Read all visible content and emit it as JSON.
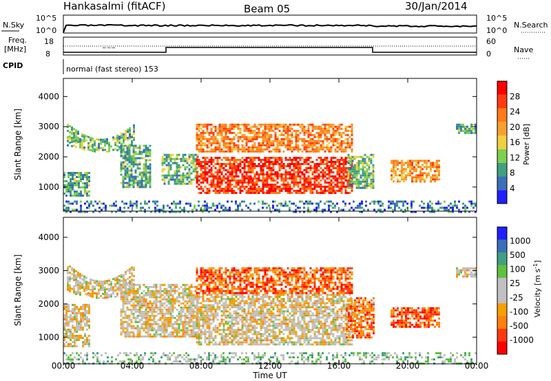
{
  "header": {
    "station": "Hankasalmi (fitACF)",
    "beam": "Beam 05",
    "date": "30/Jan/2014"
  },
  "noise_panel": {
    "left_label": "N.Sky",
    "left_top": "10^5",
    "left_bottom": "10^0",
    "right_label": "N.Search",
    "right_top": "10^5",
    "right_bottom": "10^0"
  },
  "freq_panel": {
    "label_line1": "Freq.",
    "label_line2": "[MHz]",
    "tick_top": "18",
    "tick_bottom": "8",
    "right_label": "Nave",
    "right_top": "60",
    "right_bottom": "0"
  },
  "cpid": {
    "label": "CPID",
    "text": "normal (fast stereo) 153"
  },
  "colors": {
    "power": [
      "#2020ff",
      "#3b6fb8",
      "#40a080",
      "#7fcf4f",
      "#f0d040",
      "#f7a030",
      "#ff7a18",
      "#ff3a10",
      "#ff0000"
    ],
    "velocity": [
      "#ff0000",
      "#ff3a10",
      "#ff8010",
      "#f5a000",
      "#c0c0c0",
      "#c0c0c0",
      "#60c040",
      "#40a080",
      "#3b6fb8",
      "#2020ff"
    ]
  },
  "chart_data": [
    {
      "type": "heatmap",
      "name": "power",
      "ylabel": "Slant Range [km]",
      "xlabel": "Time UT",
      "xticks": [
        "00:00",
        "04:00",
        "08:00",
        "12:00",
        "16:00",
        "20:00",
        "00:00"
      ],
      "yticks": [
        "1000",
        "2000",
        "3000",
        "4000"
      ],
      "ylim": [
        200,
        4600
      ],
      "xlim": [
        0,
        24
      ],
      "colorbar_label": "Power [dB]",
      "colorbar_ticks": [
        "4",
        "8",
        "12",
        "16",
        "20",
        "24",
        "28"
      ],
      "regions": [
        {
          "t0": 0.2,
          "t1": 4.1,
          "r0": 2200,
          "r1": 3100,
          "level": 0.35,
          "shape": "arc"
        },
        {
          "t0": 0.0,
          "t1": 1.5,
          "r0": 700,
          "r1": 1500,
          "level": 0.3
        },
        {
          "t0": 3.3,
          "t1": 5.0,
          "r0": 1000,
          "r1": 2400,
          "level": 0.3
        },
        {
          "t0": 5.7,
          "t1": 7.8,
          "r0": 1100,
          "r1": 2100,
          "level": 0.35
        },
        {
          "t0": 7.7,
          "t1": 16.8,
          "r0": 800,
          "r1": 2000,
          "level": 0.85
        },
        {
          "t0": 7.7,
          "t1": 16.8,
          "r0": 2200,
          "r1": 3100,
          "level": 0.7
        },
        {
          "t0": 16.5,
          "t1": 18.0,
          "r0": 1000,
          "r1": 2100,
          "level": 0.35
        },
        {
          "t0": 19.0,
          "t1": 21.8,
          "r0": 1200,
          "r1": 1900,
          "level": 0.65
        },
        {
          "t0": 22.8,
          "t1": 24.0,
          "r0": 2800,
          "r1": 3100,
          "level": 0.3
        },
        {
          "t0": 0.0,
          "t1": 24.0,
          "r0": 200,
          "r1": 550,
          "level": 0.2,
          "shape": "ground"
        }
      ]
    },
    {
      "type": "heatmap",
      "name": "velocity",
      "ylabel": "Slant Range [km]",
      "xlabel": "Time UT",
      "xticks": [
        "00:00",
        "04:00",
        "08:00",
        "12:00",
        "16:00",
        "20:00",
        "00:00"
      ],
      "yticks": [
        "1000",
        "2000",
        "3000",
        "4000"
      ],
      "ylim": [
        200,
        4600
      ],
      "xlim": [
        0,
        24
      ],
      "colorbar_label": "Velocity [m s^-1]",
      "colorbar_ticks": [
        "-1000",
        "-500",
        "-100",
        "-25",
        "25",
        "100",
        "500",
        "1000"
      ],
      "regions": [
        {
          "t0": 0.2,
          "t1": 4.1,
          "r0": 2200,
          "r1": 3200,
          "level": 0.45,
          "shape": "arc"
        },
        {
          "t0": 0.0,
          "t1": 1.5,
          "r0": 700,
          "r1": 2000,
          "level": 0.45
        },
        {
          "t0": 3.3,
          "t1": 7.8,
          "r0": 1000,
          "r1": 2600,
          "level": 0.45
        },
        {
          "t0": 7.7,
          "t1": 16.8,
          "r0": 800,
          "r1": 2300,
          "level": 0.45
        },
        {
          "t0": 7.7,
          "t1": 16.8,
          "r0": 2300,
          "r1": 3100,
          "level": 0.2
        },
        {
          "t0": 16.4,
          "t1": 18.0,
          "r0": 1000,
          "r1": 2200,
          "level": 0.25
        },
        {
          "t0": 19.0,
          "t1": 21.8,
          "r0": 1300,
          "r1": 1900,
          "level": 0.2
        },
        {
          "t0": 22.8,
          "t1": 24.0,
          "r0": 2800,
          "r1": 3100,
          "level": 0.45
        },
        {
          "t0": 0.0,
          "t1": 24.0,
          "r0": 200,
          "r1": 550,
          "level": 0.6,
          "shape": "ground"
        }
      ]
    }
  ]
}
